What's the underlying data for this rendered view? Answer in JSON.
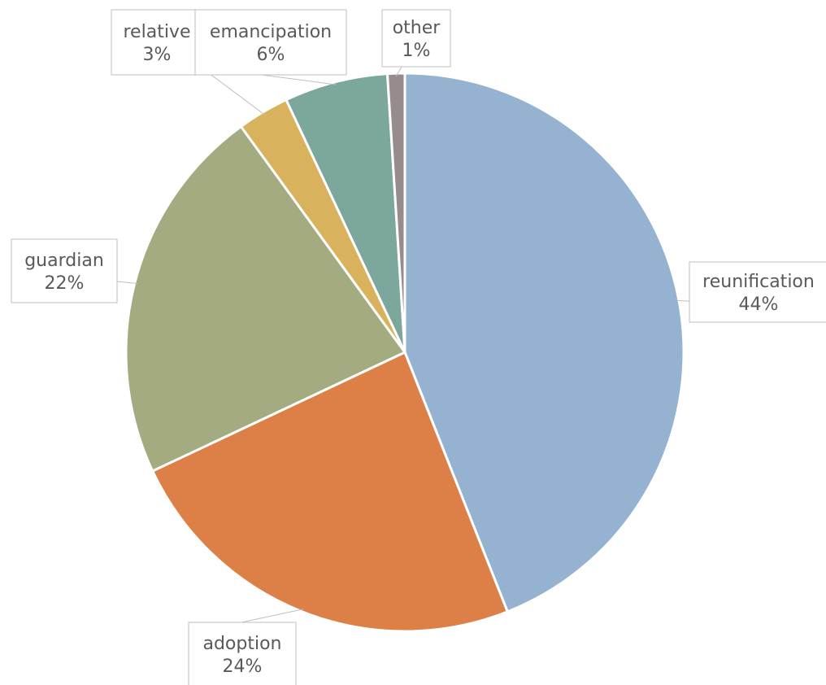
{
  "chart_data": {
    "type": "pie",
    "title": "",
    "categories": [
      "reunification",
      "adoption",
      "guardian",
      "relative",
      "emancipation",
      "other"
    ],
    "values": [
      44,
      24,
      22,
      3,
      6,
      1
    ],
    "value_labels": [
      "44%",
      "24%",
      "22%",
      "3%",
      "6%",
      "1%"
    ],
    "colors": [
      "#95B3D1",
      "#DD8047",
      "#A5AB81",
      "#D8B25C",
      "#7BA79D",
      "#968C8C"
    ],
    "start_angle_deg": 0,
    "direction": "clockwise",
    "data_labels": "callouts with category name and percent",
    "legend": "none"
  }
}
